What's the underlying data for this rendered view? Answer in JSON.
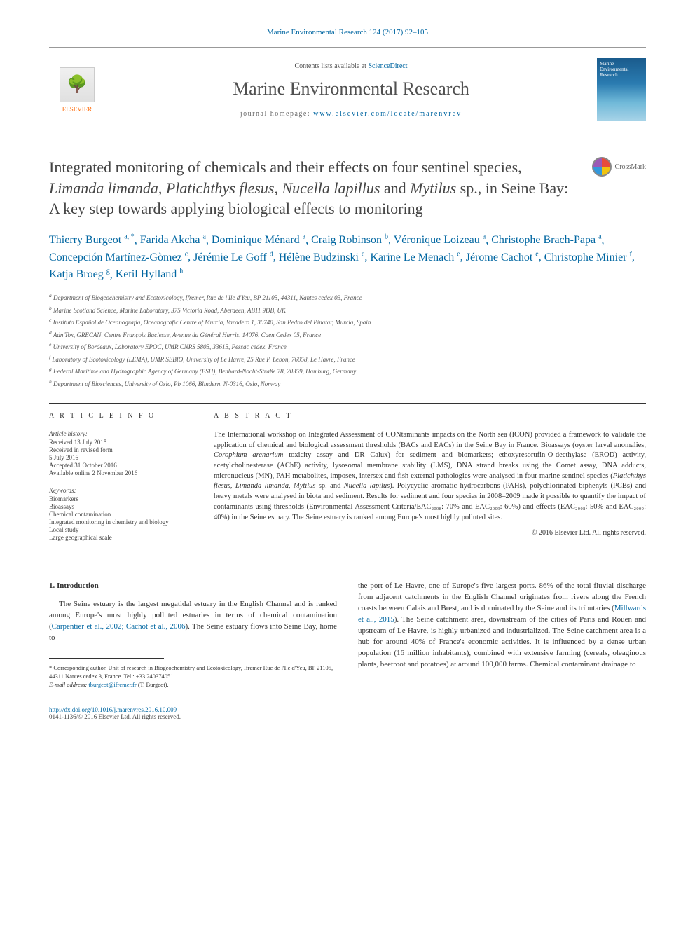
{
  "header": {
    "citation": "Marine Environmental Research 124 (2017) 92–105",
    "contents_prefix": "Contents lists available at ",
    "contents_link": "ScienceDirect",
    "journal_name": "Marine Environmental Research",
    "homepage_prefix": "journal homepage: ",
    "homepage_url": "www.elsevier.com/locate/marenvrev",
    "publisher": "ELSEVIER",
    "cover_text": "Marine Environmental Research"
  },
  "crossmark": {
    "label": "CrossMark"
  },
  "title": {
    "pre": "Integrated monitoring of chemicals and their effects on four sentinel species, ",
    "species": "Limanda limanda, Platichthys flesus, Nucella lapillus",
    "mid": " and ",
    "species2": "Mytilus",
    "post": " sp., in Seine Bay: A key step towards applying biological effects to monitoring"
  },
  "authors": [
    {
      "name": "Thierry Burgeot",
      "sup": "a, *"
    },
    {
      "name": "Farida Akcha",
      "sup": "a"
    },
    {
      "name": "Dominique Ménard",
      "sup": "a"
    },
    {
      "name": "Craig Robinson",
      "sup": "b"
    },
    {
      "name": "Véronique Loizeau",
      "sup": "a"
    },
    {
      "name": "Christophe Brach-Papa",
      "sup": "a"
    },
    {
      "name": "Concepción Martínez-Gòmez",
      "sup": "c"
    },
    {
      "name": "Jérémie Le Goff",
      "sup": "d"
    },
    {
      "name": "Hélène Budzinski",
      "sup": "e"
    },
    {
      "name": "Karine Le Menach",
      "sup": "e"
    },
    {
      "name": "Jérome Cachot",
      "sup": "e"
    },
    {
      "name": "Christophe Minier",
      "sup": "f"
    },
    {
      "name": "Katja Broeg",
      "sup": "g"
    },
    {
      "name": "Ketil Hylland",
      "sup": "h"
    }
  ],
  "affiliations": [
    {
      "key": "a",
      "text": "Department of Biogeochemistry and Ecotoxicology, Ifremer, Rue de l'Ile d'Yeu, BP 21105, 44311, Nantes cedex 03, France"
    },
    {
      "key": "b",
      "text": "Marine Scotland Science, Marine Laboratory, 375 Victoria Road, Aberdeen, AB11 9DB, UK"
    },
    {
      "key": "c",
      "text": "Instituto Español de Oceanografía, Oceanografic Centre of Murcia, Varadero 1, 30740, San Pedro del Pinatar, Murcia, Spain"
    },
    {
      "key": "d",
      "text": "Adn'Tox, GRECAN, Centre François Baclesse, Avenue du Général Harris, 14076, Caen Cedex 05, France"
    },
    {
      "key": "e",
      "text": "University of Bordeaux, Laboratory EPOC, UMR CNRS 5805, 33615, Pessac cedex, France"
    },
    {
      "key": "f",
      "text": "Laboratory of Ecotoxicology (LEMA), UMR SEBIO, University of Le Havre, 25 Rue P. Lebon, 76058, Le Havre, France"
    },
    {
      "key": "g",
      "text": "Federal Maritime and Hydrographic Agency of Germany (BSH), Benhard-Nocht-Straße 78, 20359, Hamburg, Germany"
    },
    {
      "key": "h",
      "text": "Department of Biosciences, University of Oslo, Pb 1066, Blindern, N-0316, Oslo, Norway"
    }
  ],
  "article_info": {
    "heading": "A R T I C L E  I N F O",
    "history_label": "Article history:",
    "history": [
      "Received 13 July 2015",
      "Received in revised form",
      "5 July 2016",
      "Accepted 31 October 2016",
      "Available online 2 November 2016"
    ],
    "keywords_label": "Keywords:",
    "keywords": [
      "Biomarkers",
      "Bioassays",
      "Chemical contamination",
      "Integrated monitoring in chemistry and biology",
      "Local study",
      "Large geographical scale"
    ]
  },
  "abstract": {
    "heading": "A B S T R A C T",
    "text_pre": "The International workshop on Integrated Assessment of CONtaminants impacts on the North sea (ICON) provided a framework to validate the application of chemical and biological assessment thresholds (BACs and EACs) in the Seine Bay in France. Bioassays (oyster larval anomalies, ",
    "species1": "Corophium arenarium",
    "text_mid1": " toxicity assay and DR Calux) for sediment and biomarkers; ethoxyresorufin-O-deethylase (EROD) activity, acetylcholinesterase (AChE) activity, lysosomal membrane stability (LMS), DNA strand breaks using the Comet assay, DNA adducts, micronucleus (MN), PAH metabolites, imposex, intersex and fish external pathologies were analysed in four marine sentinel species (",
    "species2": "Platichthys flesus, Limanda limanda, Mytilus",
    "text_mid2": " sp. and ",
    "species3": "Nucella lapilus",
    "text_post": "). Polycyclic aromatic hydrocarbons (PAHs), polychlorinated biphenyls (PCBs) and heavy metals were analysed in biota and sediment. Results for sediment and four species in 2008–2009 made it possible to quantify the impact of contaminants using thresholds (Environmental Assessment Criteria/EAC₂₀₀₈: 70% and EAC₂₀₀₉: 60%) and effects (EAC₂₀₀₈: 50% and EAC₂₀₀₉: 40%) in the Seine estuary. The Seine estuary is ranked among Europe's most highly polluted sites.",
    "copyright": "© 2016 Elsevier Ltd. All rights reserved."
  },
  "body": {
    "section_heading": "1. Introduction",
    "col1_p1_pre": "The Seine estuary is the largest megatidal estuary in the English Channel and is ranked among Europe's most highly polluted estuaries in terms of chemical contamination (",
    "col1_p1_link": "Carpentier et al., 2002; Cachot et al., 2006",
    "col1_p1_post": "). The Seine estuary flows into Seine Bay, home to",
    "col2_p1_pre": "the port of Le Havre, one of Europe's five largest ports. 86% of the total fluvial discharge from adjacent catchments in the English Channel originates from rivers along the French coasts between Calais and Brest, and is dominated by the Seine and its tributaries (",
    "col2_p1_link": "Millwards et al., 2015",
    "col2_p1_post": "). The Seine catchment area, downstream of the cities of Paris and Rouen and upstream of Le Havre, is highly urbanized and industrialized. The Seine catchment area is a hub for around 40% of France's economic activities. It is influenced by a dense urban population (16 million inhabitants), combined with extensive farming (cereals, oleaginous plants, beetroot and potatoes) at around 100,000 farms. Chemical contaminant drainage to"
  },
  "footnote": {
    "corresponding": "* Corresponding author. Unit of research in Biogeochemistry and Ecotoxicology, Ifremer Rue de l'Ile d'Yeu, BP 21105, 44311 Nantes cedex 3, France. Tel.: +33 240374051.",
    "email_label": "E-mail address: ",
    "email": "tburgeot@ifremer.fr",
    "email_suffix": " (T. Burgeot)."
  },
  "footer": {
    "doi": "http://dx.doi.org/10.1016/j.marenvres.2016.10.009",
    "copyright": "0141-1136/© 2016 Elsevier Ltd. All rights reserved."
  },
  "style": {
    "link_color": "#0066a1",
    "text_color": "#333333",
    "title_color": "#444444",
    "body_fontsize": 11,
    "title_fontsize": 22,
    "journal_fontsize": 26,
    "author_fontsize": 16,
    "affiliation_fontsize": 9,
    "abstract_fontsize": 10.5,
    "footnote_fontsize": 8.5
  }
}
